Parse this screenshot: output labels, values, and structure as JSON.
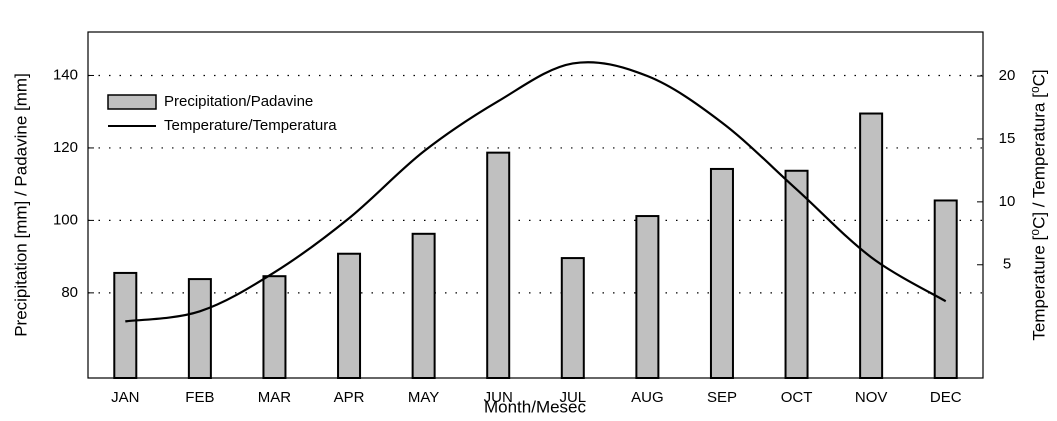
{
  "chart_data": {
    "type": "bar_line",
    "categories": [
      "JAN",
      "FEB",
      "MAR",
      "APR",
      "MAY",
      "JUN",
      "JUL",
      "AUG",
      "SEP",
      "OCT",
      "NOV",
      "DEC"
    ],
    "series": [
      {
        "name": "Precipitation/Padavine",
        "color": "#c0c0c0",
        "values": [
          85.5,
          83.8,
          84.6,
          90.8,
          96.3,
          118.7,
          89.6,
          101.2,
          114.2,
          113.7,
          129.5,
          105.5
        ]
      },
      {
        "name": "Temperature/Temperatura",
        "color": "#000000",
        "axis": "y2",
        "values": [
          0.5,
          1.3,
          4.4,
          8.7,
          14.0,
          18.0,
          21.0,
          20.0,
          16.3,
          11.0,
          5.6,
          2.1
        ]
      }
    ],
    "xlabel": "Month/Mesec",
    "ylabel": "Precipitation [mm] / Padavine [mm]",
    "y2label": "Temperature [⁰C] / Temperatura [⁰C]",
    "ylim": [
      56.5,
      152
    ],
    "yticks": [
      80,
      100,
      120,
      140
    ],
    "y2lim": [
      -4,
      23.5
    ],
    "y2ticks": [
      5,
      10,
      15,
      20
    ],
    "grid": true,
    "legend": "upper left"
  }
}
